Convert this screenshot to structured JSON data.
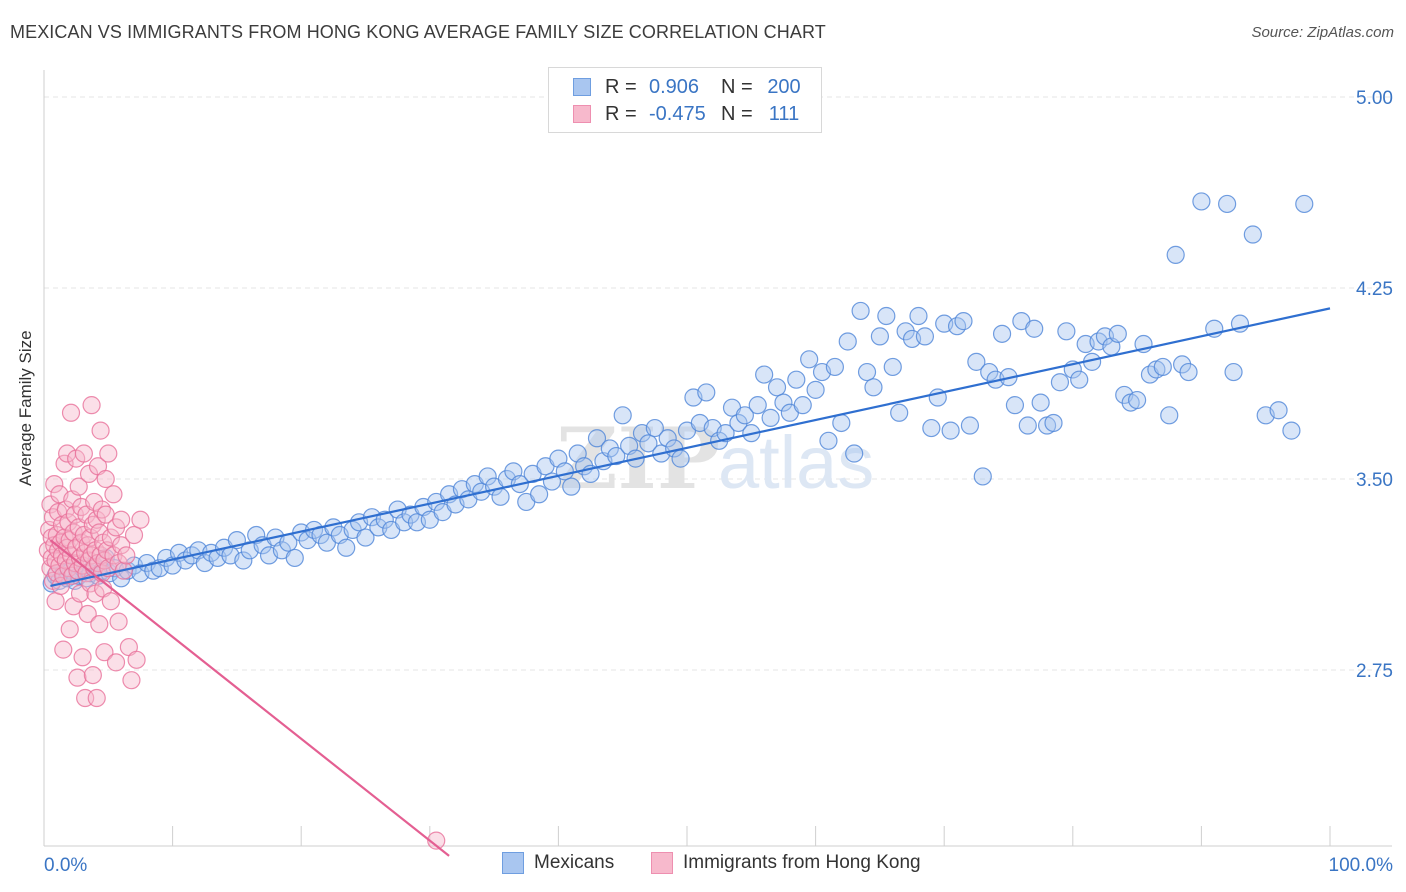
{
  "title": "MEXICAN VS IMMIGRANTS FROM HONG KONG AVERAGE FAMILY SIZE CORRELATION CHART",
  "source": "Source: ZipAtlas.com",
  "watermark": "ZIPatlas",
  "legend": {
    "rows": [
      {
        "r_label": "R =",
        "r_value": "0.906",
        "n_label": "N =",
        "n_value": "200",
        "color": "#a9c6f0"
      },
      {
        "r_label": "R =",
        "r_value": "-0.475",
        "n_label": "N =",
        "n_value": "111",
        "color": "#f7b9cc"
      }
    ]
  },
  "bottom_legend": [
    "Mexicans",
    "Immigrants from Hong Kong"
  ],
  "chart_data": {
    "type": "scatter",
    "ylabel": "Average Family Size",
    "xlim": [
      0,
      100
    ],
    "ylim": [
      2.0,
      5.1
    ],
    "x_tick_labels": [
      "0.0%",
      "100.0%"
    ],
    "y_ticks": [
      5.0,
      4.25,
      3.5,
      2.75
    ],
    "y_tick_labels": [
      "5.00",
      "4.25",
      "3.50",
      "2.75"
    ],
    "colors": {
      "mexicans": "#4f86d8",
      "mexicans_fill": "#a9c6f0",
      "hk": "#e8719a",
      "hk_fill": "#f7b9cc",
      "trend_blue": "#2f6fd0",
      "trend_pink": "#e45f92",
      "tick_color": "#3a75c4"
    },
    "series": [
      {
        "name": "Mexicans",
        "trend": {
          "x0": 0.5,
          "y0": 3.08,
          "x1": 100,
          "y1": 4.17
        },
        "points": [
          [
            0.6,
            3.09
          ],
          [
            0.9,
            3.12
          ],
          [
            1.2,
            3.1
          ],
          [
            1.5,
            3.13
          ],
          [
            1.8,
            3.11
          ],
          [
            2.1,
            3.14
          ],
          [
            2.4,
            3.1
          ],
          [
            2.7,
            3.12
          ],
          [
            3.0,
            3.15
          ],
          [
            3.3,
            3.11
          ],
          [
            3.6,
            3.13
          ],
          [
            3.9,
            3.16
          ],
          [
            4.2,
            3.12
          ],
          [
            4.5,
            3.14
          ],
          [
            4.8,
            3.19
          ],
          [
            5.1,
            3.13
          ],
          [
            5.5,
            3.15
          ],
          [
            6.0,
            3.11
          ],
          [
            6.5,
            3.14
          ],
          [
            7.0,
            3.16
          ],
          [
            7.5,
            3.13
          ],
          [
            8.0,
            3.17
          ],
          [
            8.5,
            3.14
          ],
          [
            9.0,
            3.15
          ],
          [
            9.5,
            3.19
          ],
          [
            10.0,
            3.16
          ],
          [
            10.5,
            3.21
          ],
          [
            11.0,
            3.18
          ],
          [
            11.5,
            3.2
          ],
          [
            12.0,
            3.22
          ],
          [
            12.5,
            3.17
          ],
          [
            13.0,
            3.21
          ],
          [
            13.5,
            3.19
          ],
          [
            14.0,
            3.23
          ],
          [
            14.5,
            3.2
          ],
          [
            15.0,
            3.26
          ],
          [
            15.5,
            3.18
          ],
          [
            16.0,
            3.22
          ],
          [
            16.5,
            3.28
          ],
          [
            17.0,
            3.24
          ],
          [
            17.5,
            3.2
          ],
          [
            18.0,
            3.27
          ],
          [
            18.5,
            3.22
          ],
          [
            19.0,
            3.25
          ],
          [
            19.5,
            3.19
          ],
          [
            20.0,
            3.29
          ],
          [
            20.5,
            3.26
          ],
          [
            21.0,
            3.3
          ],
          [
            21.5,
            3.28
          ],
          [
            22.0,
            3.25
          ],
          [
            22.5,
            3.31
          ],
          [
            23.0,
            3.28
          ],
          [
            23.5,
            3.23
          ],
          [
            24.0,
            3.3
          ],
          [
            24.5,
            3.33
          ],
          [
            25.0,
            3.27
          ],
          [
            25.5,
            3.35
          ],
          [
            26.0,
            3.31
          ],
          [
            26.5,
            3.34
          ],
          [
            27.0,
            3.3
          ],
          [
            27.5,
            3.38
          ],
          [
            28.0,
            3.33
          ],
          [
            28.5,
            3.36
          ],
          [
            29.0,
            3.33
          ],
          [
            29.5,
            3.39
          ],
          [
            30.0,
            3.34
          ],
          [
            30.5,
            3.41
          ],
          [
            31.0,
            3.37
          ],
          [
            31.5,
            3.44
          ],
          [
            32.0,
            3.4
          ],
          [
            32.5,
            3.46
          ],
          [
            33.0,
            3.42
          ],
          [
            33.5,
            3.48
          ],
          [
            34.0,
            3.45
          ],
          [
            34.5,
            3.51
          ],
          [
            35.0,
            3.47
          ],
          [
            35.5,
            3.43
          ],
          [
            36.0,
            3.5
          ],
          [
            36.5,
            3.53
          ],
          [
            37.0,
            3.48
          ],
          [
            37.5,
            3.41
          ],
          [
            38.0,
            3.52
          ],
          [
            38.5,
            3.44
          ],
          [
            39.0,
            3.55
          ],
          [
            39.5,
            3.49
          ],
          [
            40.0,
            3.58
          ],
          [
            40.5,
            3.53
          ],
          [
            41.0,
            3.47
          ],
          [
            41.5,
            3.6
          ],
          [
            42.0,
            3.55
          ],
          [
            42.5,
            3.52
          ],
          [
            43.0,
            3.66
          ],
          [
            43.5,
            3.57
          ],
          [
            44.0,
            3.62
          ],
          [
            44.5,
            3.59
          ],
          [
            45.0,
            3.75
          ],
          [
            45.5,
            3.63
          ],
          [
            46.0,
            3.58
          ],
          [
            46.5,
            3.68
          ],
          [
            47.0,
            3.64
          ],
          [
            47.5,
            3.7
          ],
          [
            48.0,
            3.6
          ],
          [
            48.5,
            3.66
          ],
          [
            49.0,
            3.62
          ],
          [
            49.5,
            3.58
          ],
          [
            50.0,
            3.69
          ],
          [
            50.5,
            3.82
          ],
          [
            51.0,
            3.72
          ],
          [
            51.5,
            3.84
          ],
          [
            52.0,
            3.7
          ],
          [
            52.5,
            3.65
          ],
          [
            53.0,
            3.68
          ],
          [
            53.5,
            3.78
          ],
          [
            54.0,
            3.72
          ],
          [
            54.5,
            3.75
          ],
          [
            55.0,
            3.68
          ],
          [
            55.5,
            3.79
          ],
          [
            56.0,
            3.91
          ],
          [
            56.5,
            3.74
          ],
          [
            57.0,
            3.86
          ],
          [
            57.5,
            3.8
          ],
          [
            58.0,
            3.76
          ],
          [
            58.5,
            3.89
          ],
          [
            59.0,
            3.79
          ],
          [
            59.5,
            3.97
          ],
          [
            60.0,
            3.85
          ],
          [
            60.5,
            3.92
          ],
          [
            61.0,
            3.65
          ],
          [
            61.5,
            3.94
          ],
          [
            62.0,
            3.72
          ],
          [
            62.5,
            4.04
          ],
          [
            63.0,
            3.6
          ],
          [
            63.5,
            4.16
          ],
          [
            64.0,
            3.92
          ],
          [
            64.5,
            3.86
          ],
          [
            65.0,
            4.06
          ],
          [
            65.5,
            4.14
          ],
          [
            66.0,
            3.94
          ],
          [
            66.5,
            3.76
          ],
          [
            67.0,
            4.08
          ],
          [
            67.5,
            4.05
          ],
          [
            68.0,
            4.14
          ],
          [
            68.5,
            4.06
          ],
          [
            69.0,
            3.7
          ],
          [
            69.5,
            3.82
          ],
          [
            70.0,
            4.11
          ],
          [
            70.5,
            3.69
          ],
          [
            71.0,
            4.1
          ],
          [
            71.5,
            4.12
          ],
          [
            72.0,
            3.71
          ],
          [
            72.5,
            3.96
          ],
          [
            73.0,
            3.51
          ],
          [
            73.5,
            3.92
          ],
          [
            74.0,
            3.89
          ],
          [
            74.5,
            4.07
          ],
          [
            75.0,
            3.9
          ],
          [
            75.5,
            3.79
          ],
          [
            76.0,
            4.12
          ],
          [
            76.5,
            3.71
          ],
          [
            77.0,
            4.09
          ],
          [
            77.5,
            3.8
          ],
          [
            78.0,
            3.71
          ],
          [
            78.5,
            3.72
          ],
          [
            79.0,
            3.88
          ],
          [
            79.5,
            4.08
          ],
          [
            80.0,
            3.93
          ],
          [
            80.5,
            3.89
          ],
          [
            81.0,
            4.03
          ],
          [
            81.5,
            3.96
          ],
          [
            82.0,
            4.04
          ],
          [
            82.5,
            4.06
          ],
          [
            83.0,
            4.02
          ],
          [
            83.5,
            4.07
          ],
          [
            84.0,
            3.83
          ],
          [
            84.5,
            3.8
          ],
          [
            85.0,
            3.81
          ],
          [
            85.5,
            4.03
          ],
          [
            86.0,
            3.91
          ],
          [
            86.5,
            3.93
          ],
          [
            87.0,
            3.94
          ],
          [
            87.5,
            3.75
          ],
          [
            88.0,
            4.38
          ],
          [
            88.5,
            3.95
          ],
          [
            89.0,
            3.92
          ],
          [
            90.0,
            4.59
          ],
          [
            91.0,
            4.09
          ],
          [
            92.0,
            4.58
          ],
          [
            92.5,
            3.92
          ],
          [
            93.0,
            4.11
          ],
          [
            94.0,
            4.46
          ],
          [
            95.0,
            3.75
          ],
          [
            96.0,
            3.77
          ],
          [
            97.0,
            3.69
          ],
          [
            98.0,
            4.58
          ]
        ]
      },
      {
        "name": "Immigrants from Hong Kong",
        "trend": {
          "x0": 0.5,
          "y0": 3.26,
          "x1": 31.5,
          "y1": 2.02
        },
        "points": [
          [
            0.3,
            3.22
          ],
          [
            0.4,
            3.3
          ],
          [
            0.5,
            3.15
          ],
          [
            0.5,
            3.4
          ],
          [
            0.6,
            3.19
          ],
          [
            0.6,
            3.27
          ],
          [
            0.7,
            3.1
          ],
          [
            0.7,
            3.35
          ],
          [
            0.8,
            3.24
          ],
          [
            0.8,
            3.48
          ],
          [
            0.9,
            3.18
          ],
          [
            0.9,
            3.02
          ],
          [
            1.0,
            3.28
          ],
          [
            1.0,
            3.13
          ],
          [
            1.1,
            3.22
          ],
          [
            1.1,
            3.37
          ],
          [
            1.2,
            3.16
          ],
          [
            1.2,
            3.44
          ],
          [
            1.3,
            3.25
          ],
          [
            1.3,
            3.08
          ],
          [
            1.4,
            3.2
          ],
          [
            1.4,
            3.32
          ],
          [
            1.5,
            3.12
          ],
          [
            1.5,
            2.83
          ],
          [
            1.6,
            3.27
          ],
          [
            1.6,
            3.56
          ],
          [
            1.7,
            3.18
          ],
          [
            1.7,
            3.38
          ],
          [
            1.8,
            3.23
          ],
          [
            1.8,
            3.6
          ],
          [
            1.9,
            3.15
          ],
          [
            1.9,
            3.33
          ],
          [
            2.0,
            3.26
          ],
          [
            2.0,
            2.91
          ],
          [
            2.1,
            3.2
          ],
          [
            2.1,
            3.76
          ],
          [
            2.2,
            3.12
          ],
          [
            2.2,
            3.42
          ],
          [
            2.3,
            3.29
          ],
          [
            2.3,
            3.0
          ],
          [
            2.4,
            3.17
          ],
          [
            2.4,
            3.36
          ],
          [
            2.5,
            3.23
          ],
          [
            2.5,
            3.58
          ],
          [
            2.6,
            3.14
          ],
          [
            2.6,
            2.72
          ],
          [
            2.7,
            3.31
          ],
          [
            2.7,
            3.47
          ],
          [
            2.8,
            3.19
          ],
          [
            2.8,
            3.05
          ],
          [
            2.9,
            3.25
          ],
          [
            2.9,
            3.39
          ],
          [
            3.0,
            3.16
          ],
          [
            3.0,
            2.8
          ],
          [
            3.1,
            3.28
          ],
          [
            3.1,
            3.6
          ],
          [
            3.2,
            3.21
          ],
          [
            3.2,
            2.64
          ],
          [
            3.3,
            3.13
          ],
          [
            3.3,
            3.36
          ],
          [
            3.4,
            3.24
          ],
          [
            3.4,
            2.97
          ],
          [
            3.5,
            3.18
          ],
          [
            3.5,
            3.52
          ],
          [
            3.6,
            3.27
          ],
          [
            3.6,
            3.09
          ],
          [
            3.7,
            3.2
          ],
          [
            3.7,
            3.79
          ],
          [
            3.8,
            3.32
          ],
          [
            3.8,
            2.73
          ],
          [
            3.9,
            3.15
          ],
          [
            3.9,
            3.41
          ],
          [
            4.0,
            3.22
          ],
          [
            4.0,
            3.05
          ],
          [
            4.1,
            3.34
          ],
          [
            4.1,
            2.64
          ],
          [
            4.2,
            3.17
          ],
          [
            4.2,
            3.55
          ],
          [
            4.3,
            3.29
          ],
          [
            4.3,
            2.93
          ],
          [
            4.4,
            3.2
          ],
          [
            4.4,
            3.69
          ],
          [
            4.5,
            3.13
          ],
          [
            4.5,
            3.38
          ],
          [
            4.6,
            3.25
          ],
          [
            4.6,
            3.07
          ],
          [
            4.7,
            3.18
          ],
          [
            4.7,
            2.82
          ],
          [
            4.8,
            3.36
          ],
          [
            4.8,
            3.5
          ],
          [
            4.9,
            3.22
          ],
          [
            5.0,
            3.15
          ],
          [
            5.0,
            3.6
          ],
          [
            5.2,
            3.27
          ],
          [
            5.2,
            3.02
          ],
          [
            5.4,
            3.2
          ],
          [
            5.4,
            3.44
          ],
          [
            5.6,
            3.31
          ],
          [
            5.6,
            2.78
          ],
          [
            5.8,
            3.17
          ],
          [
            5.8,
            2.94
          ],
          [
            6.0,
            3.24
          ],
          [
            6.0,
            3.34
          ],
          [
            6.2,
            3.14
          ],
          [
            6.4,
            3.2
          ],
          [
            6.6,
            2.84
          ],
          [
            6.8,
            2.71
          ],
          [
            7.0,
            3.28
          ],
          [
            7.2,
            2.79
          ],
          [
            7.5,
            3.34
          ],
          [
            30.5,
            2.08
          ]
        ]
      }
    ]
  }
}
